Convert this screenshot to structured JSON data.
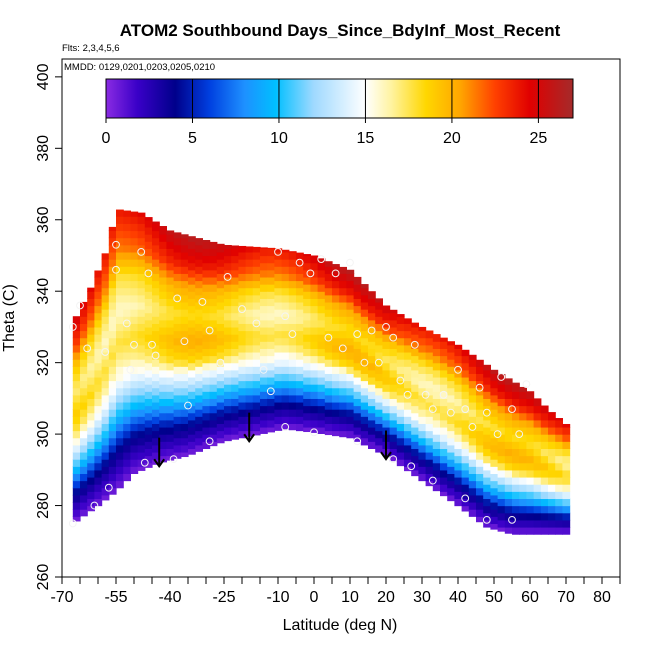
{
  "chart_data": {
    "type": "heatmap",
    "title": "ATOM2 Southbound Days_Since_BdyInf_Most_Recent",
    "subtitle_flights": "Flts: 2,3,4,5,6",
    "subtitle_dates": "MMDD: 0129,0201,0203,0205,0210",
    "xlabel": "Latitude (deg N)",
    "ylabel": "Theta (C)",
    "xlim": [
      -70,
      85
    ],
    "ylim": [
      260,
      405
    ],
    "x_ticks": [
      -70,
      -55,
      -40,
      -25,
      -10,
      0,
      10,
      20,
      30,
      40,
      50,
      60,
      70,
      80
    ],
    "x_minor_ticks": [
      -65,
      -60,
      -50,
      -45,
      -35,
      -30,
      -20,
      -15,
      -5,
      5,
      15,
      25,
      35,
      45,
      55,
      65,
      75,
      85
    ],
    "y_ticks": [
      260,
      280,
      300,
      320,
      340,
      360,
      380,
      400
    ],
    "colorbar": {
      "range": [
        0,
        27
      ],
      "ticks": [
        0,
        5,
        10,
        15,
        20,
        25
      ],
      "colors": [
        "#8a2be2",
        "#3a00c8",
        "#00008b",
        "#0040e0",
        "#1e90ff",
        "#00bfff",
        "#9fd9ff",
        "#ffffff",
        "#fff3a0",
        "#ffd700",
        "#ffa500",
        "#ff4000",
        "#e00000",
        "#a52a2a"
      ],
      "color_positions": [
        0,
        1.8,
        4,
        6,
        8,
        9.8,
        12,
        15,
        16.5,
        18.5,
        20.5,
        22.5,
        24.5,
        27
      ]
    },
    "domain_lat": [
      -67,
      71
    ],
    "bottom_edge_theta": [
      [
        -67,
        275
      ],
      [
        -60,
        280
      ],
      [
        -55,
        284
      ],
      [
        -50,
        289
      ],
      [
        -43,
        292
      ],
      [
        -35,
        294
      ],
      [
        -25,
        298
      ],
      [
        -15,
        300
      ],
      [
        -8,
        301.5
      ],
      [
        0,
        300.5
      ],
      [
        10,
        299
      ],
      [
        20,
        294
      ],
      [
        30,
        287
      ],
      [
        40,
        280
      ],
      [
        48,
        274
      ],
      [
        55,
        272
      ],
      [
        71,
        272
      ]
    ],
    "top_edge_theta": [
      [
        -67,
        331
      ],
      [
        -62,
        341
      ],
      [
        -57,
        353
      ],
      [
        -55,
        363
      ],
      [
        -48,
        362
      ],
      [
        -40,
        357
      ],
      [
        -25,
        353
      ],
      [
        -10,
        352
      ],
      [
        0,
        350
      ],
      [
        10,
        346
      ],
      [
        20,
        336
      ],
      [
        30,
        330
      ],
      [
        40,
        325
      ],
      [
        50,
        318
      ],
      [
        60,
        312
      ],
      [
        65,
        307
      ],
      [
        71,
        302
      ]
    ],
    "layers": [
      {
        "depth": 0,
        "value": 0.5
      },
      {
        "depth": 8,
        "value": 2.5
      },
      {
        "depth": 15,
        "value": 4.5
      },
      {
        "depth": 20,
        "value": 7
      },
      {
        "depth": 26,
        "value": 10
      },
      {
        "depth": 32,
        "value": 12.5
      },
      {
        "depth": 38,
        "value": 15
      },
      {
        "depth": 44,
        "value": 17.5
      },
      {
        "depth": 52,
        "value": 19
      },
      {
        "depth": 64,
        "value": 17
      },
      {
        "depth": 76,
        "value": 19
      },
      {
        "depth": 86,
        "value": 22.5
      },
      {
        "depth": 100,
        "value": 25
      }
    ],
    "sample_points": [
      [
        -67,
        330
      ],
      [
        -65,
        336
      ],
      [
        -63,
        324
      ],
      [
        -58,
        323
      ],
      [
        -55,
        353
      ],
      [
        -55,
        346
      ],
      [
        -52,
        331
      ],
      [
        -51,
        318
      ],
      [
        -50,
        325
      ],
      [
        -48,
        351
      ],
      [
        -46,
        345
      ],
      [
        -45,
        325
      ],
      [
        -44,
        322
      ],
      [
        -38,
        338
      ],
      [
        -36,
        326
      ],
      [
        -35,
        308
      ],
      [
        -31,
        337
      ],
      [
        -29,
        329
      ],
      [
        -26,
        320
      ],
      [
        -24,
        344
      ],
      [
        -20,
        335
      ],
      [
        -16,
        331
      ],
      [
        -14,
        318
      ],
      [
        -12,
        312
      ],
      [
        -10,
        351
      ],
      [
        -8,
        333
      ],
      [
        -6,
        328
      ],
      [
        -4,
        348
      ],
      [
        -1,
        345
      ],
      [
        2,
        349
      ],
      [
        4,
        327
      ],
      [
        6,
        345
      ],
      [
        8,
        324
      ],
      [
        10,
        348
      ],
      [
        12,
        328
      ],
      [
        14,
        320
      ],
      [
        16,
        329
      ],
      [
        18,
        320
      ],
      [
        20,
        330
      ],
      [
        22,
        327
      ],
      [
        24,
        315
      ],
      [
        26,
        311
      ],
      [
        28,
        325
      ],
      [
        31,
        311
      ],
      [
        33,
        307
      ],
      [
        36,
        311
      ],
      [
        38,
        306
      ],
      [
        40,
        318
      ],
      [
        42,
        307
      ],
      [
        44,
        302
      ],
      [
        46,
        313
      ],
      [
        48,
        306
      ],
      [
        51,
        300
      ],
      [
        52,
        316
      ],
      [
        55,
        307
      ],
      [
        57,
        300
      ],
      [
        59,
        314
      ],
      [
        -67,
        275
      ],
      [
        -61,
        280
      ],
      [
        -57,
        285
      ],
      [
        -47,
        292
      ],
      [
        -39,
        293
      ],
      [
        -29,
        298
      ],
      [
        -8,
        302
      ],
      [
        0,
        300.5
      ],
      [
        12,
        298
      ],
      [
        22,
        293
      ],
      [
        27,
        291
      ],
      [
        33,
        287
      ],
      [
        42,
        282
      ],
      [
        48,
        276
      ],
      [
        55,
        276
      ]
    ],
    "arrows": [
      {
        "lat": -43,
        "theta": 297
      },
      {
        "lat": -18,
        "theta": 304
      },
      {
        "lat": 20,
        "theta": 299
      }
    ]
  }
}
